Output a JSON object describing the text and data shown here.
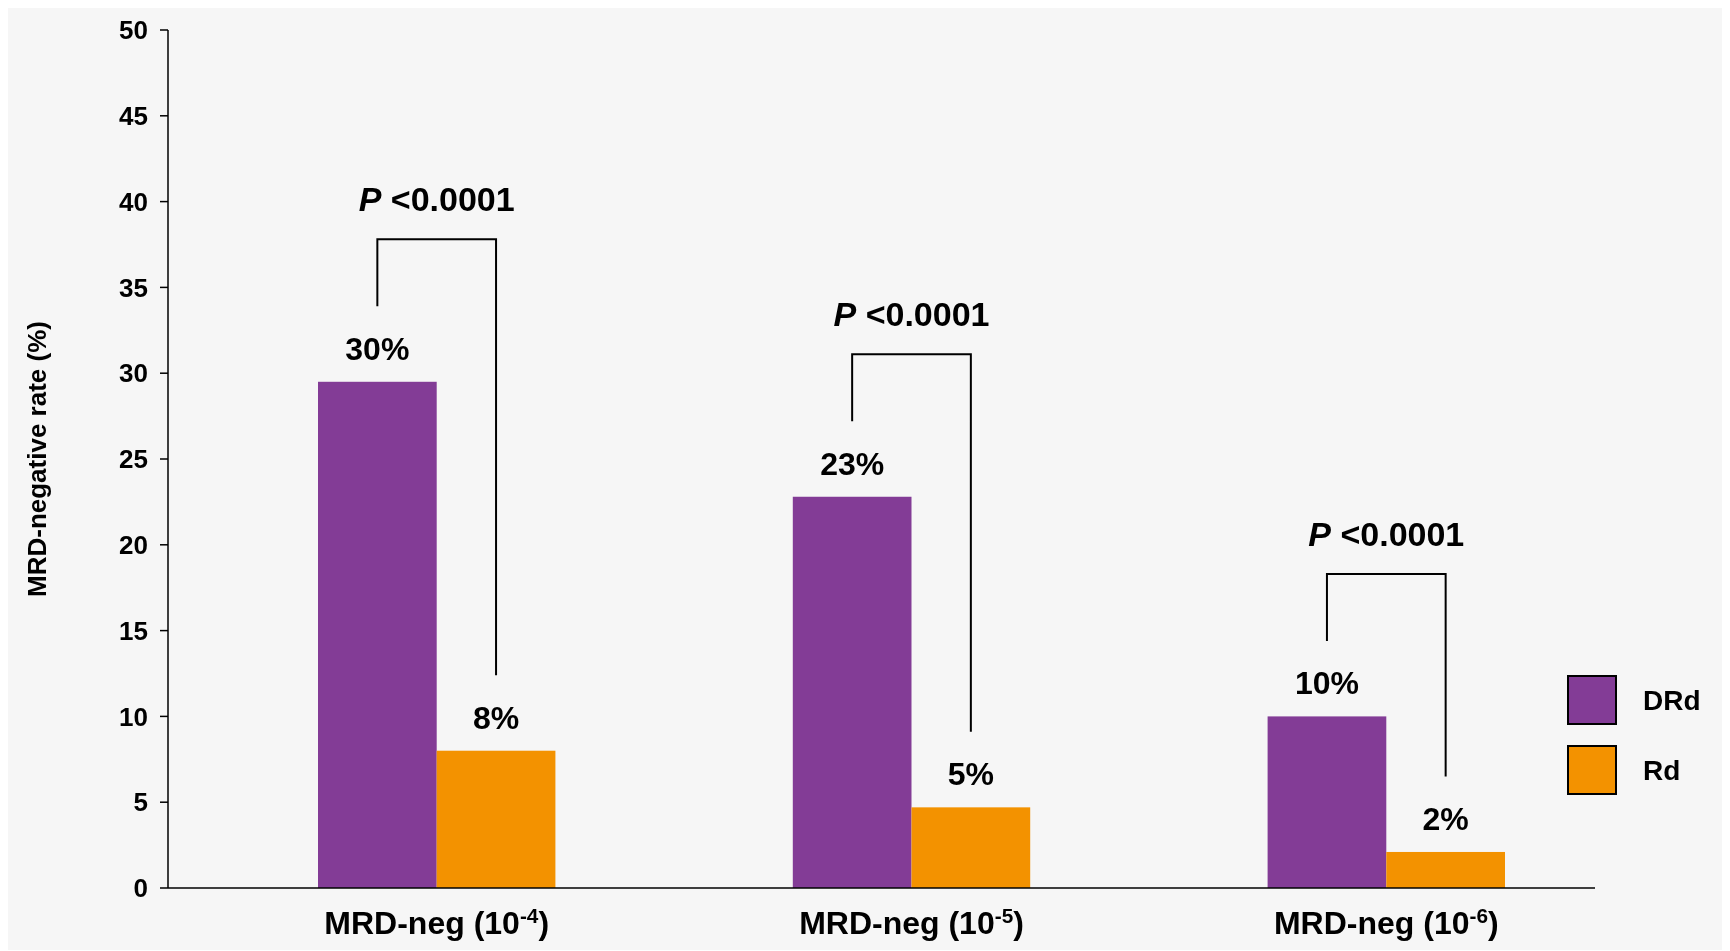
{
  "chart_data": {
    "type": "bar",
    "ylabel": "MRD-negative rate (%)",
    "categories": [
      "MRD-neg (10$^{-4}$)",
      "MRD-neg (10$^{-5}$)",
      "MRD-neg (10$^{-6}$)"
    ],
    "series": [
      {
        "name": "DRd",
        "color": "#833c96",
        "values": [
          29.5,
          22.8,
          10
        ],
        "value_labels": [
          "30%",
          "23%",
          "10%"
        ]
      },
      {
        "name": "Rd",
        "color": "#f39200",
        "values": [
          8,
          4.7,
          2.1
        ],
        "value_labels": [
          "8%",
          "5%",
          "2%"
        ]
      }
    ],
    "ylim": [
      0,
      50
    ],
    "yticks": [
      0,
      5,
      10,
      15,
      20,
      25,
      30,
      35,
      40,
      45,
      50
    ],
    "grid": false,
    "legend": "right",
    "annotations": [
      "P <0.0001",
      "P <0.0001",
      "P <0.0001"
    ]
  }
}
